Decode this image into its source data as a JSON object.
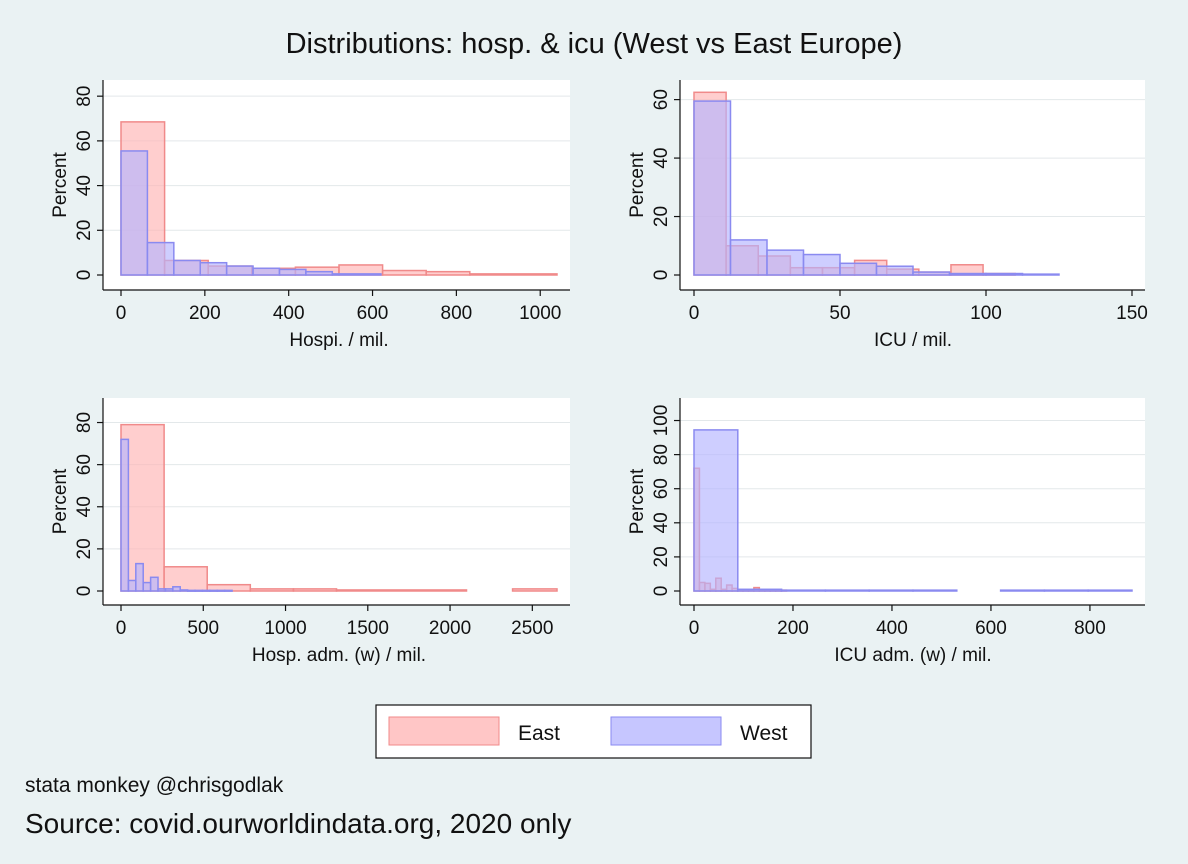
{
  "figure": {
    "title": "Distributions: hosp. & icu (West vs East Europe)",
    "author_note": "stata monkey @chrisgodlak",
    "source_note": "Source: covid.ourworldindata.org, 2020 only"
  },
  "colors": {
    "east_fill": "#ffb3b3",
    "east_stroke": "#f08a8a",
    "west_fill": "#b3b3ff",
    "west_stroke": "#8a8af0",
    "plot_bg": "#ffffff",
    "grid": "#e3e8ea"
  },
  "legend": {
    "position": "bottom",
    "items": [
      "East",
      "West"
    ]
  },
  "chart_data": [
    {
      "type": "histogram",
      "xlabel": "Hospi. / mil.",
      "ylabel": "Percent",
      "xlim": [
        0,
        1040
      ],
      "ylim": [
        0,
        85
      ],
      "xticks": [
        0,
        200,
        400,
        600,
        800,
        1000
      ],
      "yticks": [
        0,
        20,
        40,
        60,
        80
      ],
      "grid": true,
      "series": [
        {
          "name": "East",
          "bin_edges": [
            0,
            104,
            208,
            312,
            416,
            520,
            624,
            728,
            832,
            1040
          ],
          "values": [
            68.5,
            6.5,
            4.0,
            3.0,
            3.5,
            4.5,
            2.0,
            1.5,
            0.5
          ]
        },
        {
          "name": "West",
          "bin_edges": [
            0,
            63,
            126,
            189,
            252,
            315,
            378,
            441,
            504,
            620
          ],
          "values": [
            55.5,
            14.5,
            6.5,
            5.5,
            4.0,
            3.0,
            2.5,
            1.5,
            0.5
          ]
        }
      ]
    },
    {
      "type": "histogram",
      "xlabel": "ICU / mil.",
      "ylabel": "Percent",
      "xlim": [
        0,
        150
      ],
      "ylim": [
        0,
        65
      ],
      "xticks": [
        0,
        50,
        100,
        150
      ],
      "yticks": [
        0,
        20,
        40,
        60
      ],
      "grid": true,
      "series": [
        {
          "name": "East",
          "bin_edges": [
            0,
            11,
            22,
            33,
            44,
            55,
            66,
            77,
            88,
            99,
            110
          ],
          "values": [
            62.5,
            10.0,
            6.5,
            2.5,
            2.5,
            5.0,
            2.0,
            1.0,
            3.5,
            0.5
          ]
        },
        {
          "name": "West",
          "bin_edges": [
            0,
            12.5,
            25,
            37.5,
            50,
            62.5,
            75,
            87.5,
            100,
            112.5,
            125
          ],
          "values": [
            59.5,
            12.0,
            8.5,
            7.0,
            4.0,
            3.0,
            1.0,
            0.5,
            0.5,
            0.3
          ]
        }
      ]
    },
    {
      "type": "histogram",
      "xlabel": "Hosp. adm. (w) / mil.",
      "ylabel": "Percent",
      "xlim": [
        0,
        2650
      ],
      "ylim": [
        0,
        85
      ],
      "xticks": [
        0,
        500,
        1000,
        1500,
        2000,
        2500
      ],
      "yticks": [
        0,
        20,
        40,
        60,
        80
      ],
      "grid": true,
      "series": [
        {
          "name": "East",
          "bin_edges": [
            0,
            262,
            524,
            786,
            1048,
            1310,
            2100,
            2380,
            2650
          ],
          "values": [
            79.0,
            11.5,
            3.0,
            1.0,
            1.0,
            0.5,
            0,
            1.0
          ]
        },
        {
          "name": "West",
          "bin_edges": [
            0,
            45,
            90,
            135,
            180,
            225,
            270,
            315,
            360,
            405,
            450,
            495,
            540,
            585,
            630,
            675
          ],
          "values": [
            72.0,
            5.0,
            13.0,
            4.0,
            6.5,
            1.0,
            1.0,
            2.0,
            0.5,
            0.3,
            0.3,
            0.3,
            0.3,
            0.3,
            0.3
          ]
        }
      ]
    },
    {
      "type": "histogram",
      "xlabel": "ICU adm. (w) / mil.",
      "ylabel": "Percent",
      "xlim": [
        0,
        885
      ],
      "ylim": [
        0,
        105
      ],
      "xticks": [
        0,
        200,
        400,
        600,
        800
      ],
      "yticks": [
        0,
        20,
        40,
        60,
        80,
        100
      ],
      "grid": true,
      "series": [
        {
          "name": "East",
          "bin_edges": [
            0,
            11,
            22,
            33,
            44,
            55,
            66,
            77,
            88,
            99,
            110,
            121,
            132,
            143,
            154,
            165,
            176,
            187
          ],
          "values": [
            72.0,
            5.0,
            4.5,
            1.0,
            7.5,
            1.0,
            3.5,
            1.5,
            0.5,
            0.5,
            0.5,
            2.0,
            0.5,
            0.5,
            0.5,
            0.5,
            0.5
          ]
        },
        {
          "name": "West",
          "bin_edges": [
            0,
            88.5,
            177,
            265.5,
            354,
            442.5,
            531,
            619.5,
            708,
            796.5,
            885
          ],
          "values": [
            94.5,
            1.0,
            0.5,
            0.5,
            0.5,
            0.5,
            0,
            0.5,
            0.5,
            0.5
          ]
        }
      ]
    }
  ]
}
